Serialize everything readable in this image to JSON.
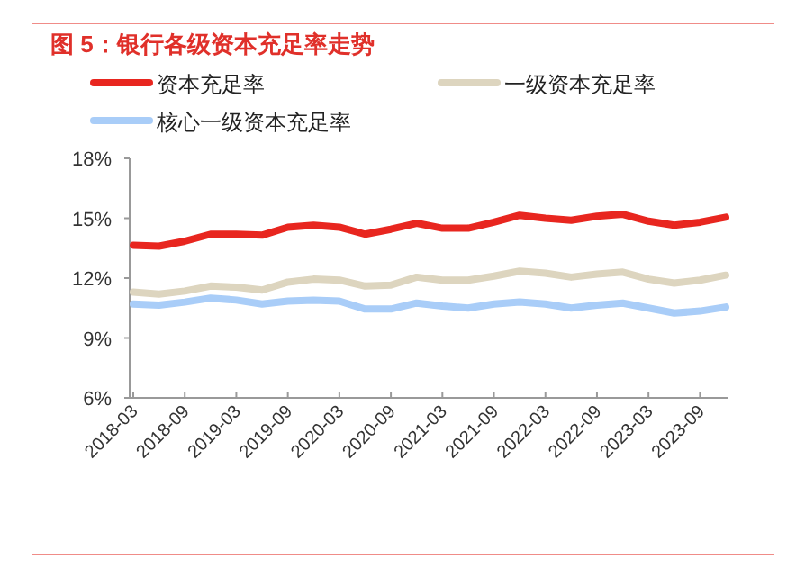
{
  "chart_data": {
    "type": "line",
    "title": "图 5：银行各级资本充足率走势",
    "categories": [
      "2018-03",
      null,
      "2018-09",
      null,
      "2019-03",
      null,
      "2019-09",
      null,
      "2020-03",
      null,
      "2020-09",
      null,
      "2021-03",
      null,
      "2021-09",
      null,
      "2022-03",
      null,
      "2022-09",
      null,
      "2023-03",
      null,
      "2023-09",
      null
    ],
    "series": [
      {
        "name": "资本充足率",
        "color": "#e8261f",
        "values": [
          13.65,
          13.6,
          13.85,
          14.2,
          14.2,
          14.15,
          14.55,
          14.65,
          14.55,
          14.2,
          14.45,
          14.75,
          14.5,
          14.5,
          14.8,
          15.15,
          15.0,
          14.9,
          15.1,
          15.2,
          14.85,
          14.65,
          14.8,
          15.05
        ]
      },
      {
        "name": "一级资本充足率",
        "color": "#ddd5bf",
        "values": [
          11.3,
          11.2,
          11.35,
          11.6,
          11.55,
          11.4,
          11.8,
          11.95,
          11.9,
          11.6,
          11.65,
          12.05,
          11.9,
          11.9,
          12.1,
          12.35,
          12.25,
          12.05,
          12.2,
          12.3,
          11.95,
          11.75,
          11.9,
          12.15
        ]
      },
      {
        "name": "核心一级资本充足率",
        "color": "#a9cdf8",
        "values": [
          10.7,
          10.65,
          10.8,
          11.0,
          10.9,
          10.7,
          10.85,
          10.9,
          10.85,
          10.45,
          10.45,
          10.75,
          10.6,
          10.5,
          10.7,
          10.8,
          10.7,
          10.5,
          10.65,
          10.75,
          10.5,
          10.25,
          10.35,
          10.55
        ]
      }
    ],
    "ylim": [
      6,
      18
    ],
    "yticks": [
      {
        "value": 6,
        "label": "6%"
      },
      {
        "value": 9,
        "label": "9%"
      },
      {
        "value": 12,
        "label": "12%"
      },
      {
        "value": 15,
        "label": "15%"
      },
      {
        "value": 18,
        "label": "18%"
      }
    ],
    "legend": "top"
  }
}
